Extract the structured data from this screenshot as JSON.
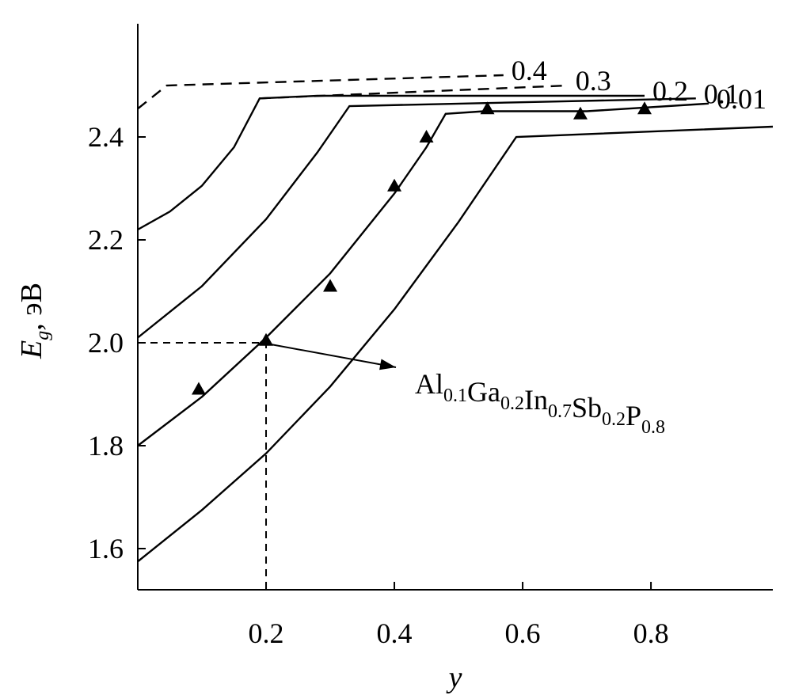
{
  "chart_data": {
    "type": "line",
    "xlabel": "y",
    "ylabel": "E",
    "ylabel_sub": "g",
    "ylabel_unit": ", эВ",
    "xlim": [
      0.0,
      0.99
    ],
    "ylim": [
      1.52,
      2.62
    ],
    "x_ticks": [
      0.2,
      0.4,
      0.6,
      0.8
    ],
    "x_tick_labels": [
      "0.2",
      "0.4",
      "0.6",
      "0.8"
    ],
    "y_ticks": [
      1.6,
      1.8,
      2.0,
      2.2,
      2.4
    ],
    "y_tick_labels": [
      "1.6",
      "1.8",
      "2.0",
      "2.2",
      "2.4"
    ],
    "grid": false,
    "series": [
      {
        "name": "0.4",
        "style": "dashed",
        "x": [
          0.0,
          0.045,
          0.57
        ],
        "y": [
          2.455,
          2.5,
          2.52
        ]
      },
      {
        "name": "0.3",
        "style": "dashed",
        "x": [
          0.19,
          0.67
        ],
        "y": [
          2.475,
          2.5
        ]
      },
      {
        "name": "0.2",
        "style": "solid",
        "x": [
          0.0,
          0.05,
          0.1,
          0.15,
          0.19,
          0.19,
          0.28,
          0.79
        ],
        "y": [
          2.22,
          2.255,
          2.305,
          2.38,
          2.475,
          2.475,
          2.48,
          2.48
        ]
      },
      {
        "name": "0.1",
        "style": "solid",
        "x": [
          0.0,
          0.1,
          0.2,
          0.28,
          0.33,
          0.87
        ],
        "y": [
          2.01,
          2.11,
          2.24,
          2.37,
          2.46,
          2.475
        ]
      },
      {
        "name": "0.01",
        "style": "solid",
        "x": [
          0.0,
          0.1,
          0.2,
          0.3,
          0.4,
          0.45,
          0.48,
          0.54,
          0.7,
          0.89
        ],
        "y": [
          1.8,
          1.895,
          2.01,
          2.135,
          2.29,
          2.38,
          2.445,
          2.45,
          2.45,
          2.465
        ]
      },
      {
        "name": "",
        "style": "solid",
        "x": [
          0.0,
          0.1,
          0.2,
          0.3,
          0.4,
          0.5,
          0.59,
          0.99
        ],
        "y": [
          1.575,
          1.675,
          1.785,
          1.915,
          2.065,
          2.235,
          2.4,
          2.42
        ]
      }
    ],
    "experimental": {
      "marker": "triangle",
      "x": [
        0.095,
        0.2,
        0.3,
        0.4,
        0.45,
        0.545,
        0.69,
        0.79
      ],
      "y": [
        1.91,
        2.005,
        2.11,
        2.305,
        2.4,
        2.455,
        2.445,
        2.455
      ]
    },
    "guide_point": {
      "x": 0.2,
      "y": 2.0
    },
    "annotation": {
      "target": {
        "x": 0.2,
        "y": 2.0
      },
      "parts": [
        {
          "text": "Al",
          "sub": "0.1"
        },
        {
          "text": "Ga",
          "sub": "0.2"
        },
        {
          "text": "In",
          "sub": "0.7"
        },
        {
          "text": "Sb",
          "sub": "0.2"
        },
        {
          "text": "P",
          "sub": "0.8"
        }
      ]
    }
  }
}
